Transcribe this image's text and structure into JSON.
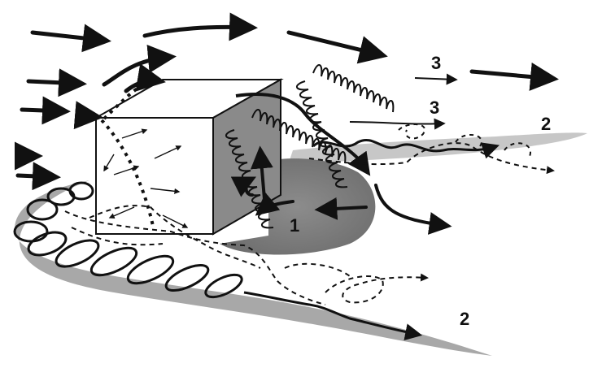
{
  "diagram": {
    "labels": {
      "vortex_core": "1",
      "wake_lower": "2",
      "wake_upper": "2",
      "shear_top": "3",
      "shear_mid": "3"
    }
  }
}
